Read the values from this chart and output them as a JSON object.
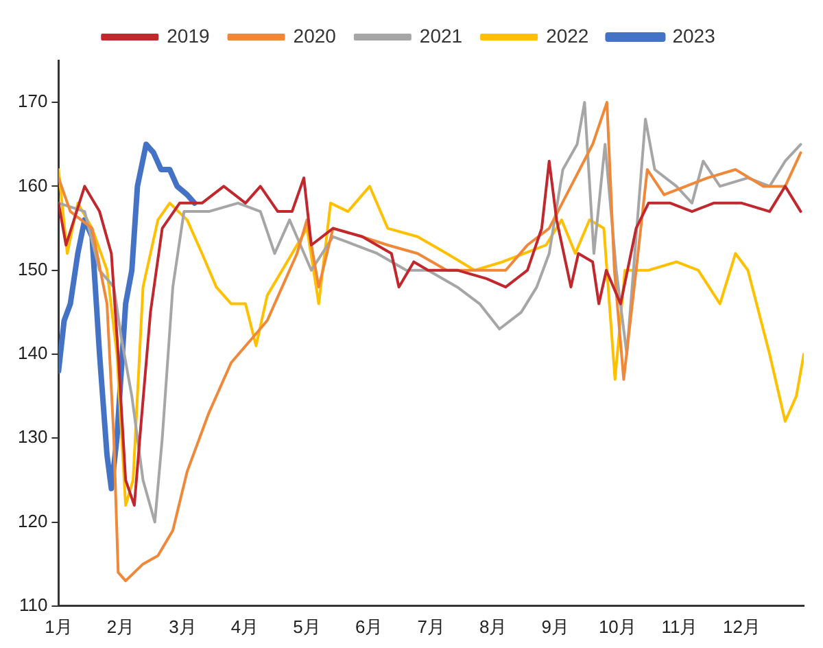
{
  "chart_data": {
    "type": "line",
    "xlim": [
      1,
      13
    ],
    "ylim": [
      110,
      175
    ],
    "yticks": [
      110,
      120,
      130,
      140,
      150,
      160,
      170
    ],
    "xticks": [
      {
        "value": 1,
        "label": "1月"
      },
      {
        "value": 2,
        "label": "2月"
      },
      {
        "value": 3,
        "label": "3月"
      },
      {
        "value": 4,
        "label": "4月"
      },
      {
        "value": 5,
        "label": "5月"
      },
      {
        "value": 6,
        "label": "6月"
      },
      {
        "value": 7,
        "label": "7月"
      },
      {
        "value": 8,
        "label": "8月"
      },
      {
        "value": 9,
        "label": "9月"
      },
      {
        "value": 10,
        "label": "10月"
      },
      {
        "value": 11,
        "label": "11月"
      },
      {
        "value": 12,
        "label": "12月"
      }
    ],
    "grid": false,
    "legend": "top",
    "marker": "none",
    "line_style": "solid",
    "series": [
      {
        "name": "2019",
        "color": "#c0282d",
        "x": [
          1.0,
          1.12,
          1.42,
          1.66,
          1.85,
          1.96,
          2.08,
          2.22,
          2.32,
          2.48,
          2.67,
          2.95,
          3.31,
          3.66,
          4.01,
          4.25,
          4.53,
          4.76,
          4.95,
          5.07,
          5.42,
          5.89,
          6.36,
          6.48,
          6.72,
          6.95,
          7.42,
          7.89,
          8.2,
          8.55,
          8.78,
          8.9,
          9.02,
          9.25,
          9.37,
          9.6,
          9.7,
          9.82,
          10.05,
          10.3,
          10.5,
          10.85,
          11.2,
          11.55,
          12.0,
          12.45,
          12.7,
          12.95
        ],
        "values": [
          158,
          153,
          160,
          157,
          152,
          140,
          125,
          122,
          131,
          145,
          155,
          158,
          158,
          160,
          158,
          160,
          157,
          157,
          161,
          153,
          155,
          154,
          152,
          148,
          151,
          150,
          150,
          149,
          148,
          150,
          155,
          163,
          156,
          148,
          152,
          151,
          146,
          150,
          146,
          155,
          158,
          158,
          157,
          158,
          158,
          157,
          160,
          157
        ]
      },
      {
        "name": "2020",
        "color": "#f0883a",
        "x": [
          1.0,
          1.19,
          1.54,
          1.78,
          1.89,
          1.96,
          2.08,
          2.36,
          2.6,
          2.84,
          3.07,
          3.42,
          3.78,
          4.13,
          4.36,
          4.6,
          4.84,
          5.0,
          5.19,
          5.42,
          5.89,
          6.3,
          6.78,
          7.25,
          7.7,
          8.2,
          8.55,
          8.9,
          9.25,
          9.6,
          9.83,
          9.95,
          10.1,
          10.3,
          10.48,
          10.75,
          11.1,
          11.45,
          11.9,
          12.35,
          12.7,
          12.95
        ],
        "values": [
          161,
          157,
          155,
          146,
          130,
          114,
          113,
          115,
          116,
          119,
          126,
          133,
          139,
          142,
          144,
          148,
          152,
          156,
          148,
          155,
          154,
          153,
          152,
          150,
          150,
          150,
          153,
          155,
          160,
          165,
          170,
          150,
          137,
          150,
          162,
          159,
          160,
          161,
          162,
          160,
          160,
          164
        ]
      },
      {
        "name": "2021",
        "color": "#a6a6a6",
        "x": [
          1.0,
          1.42,
          1.66,
          1.89,
          2.01,
          2.18,
          2.36,
          2.55,
          2.67,
          2.84,
          3.02,
          3.42,
          3.89,
          4.25,
          4.48,
          4.72,
          5.07,
          5.42,
          5.78,
          6.13,
          6.6,
          6.95,
          7.42,
          7.78,
          8.1,
          8.45,
          8.7,
          8.9,
          9.12,
          9.35,
          9.47,
          9.62,
          9.8,
          9.98,
          10.15,
          10.45,
          10.6,
          10.95,
          11.2,
          11.38,
          11.65,
          12.1,
          12.45,
          12.7,
          12.95
        ],
        "values": [
          158,
          157,
          150,
          148,
          142,
          135,
          125,
          120,
          130,
          148,
          157,
          157,
          158,
          157,
          152,
          156,
          150,
          154,
          153,
          152,
          150,
          150,
          148,
          146,
          143,
          145,
          148,
          152,
          162,
          165,
          170,
          152,
          165,
          150,
          140,
          168,
          162,
          160,
          158,
          163,
          160,
          161,
          160,
          163,
          165
        ]
      },
      {
        "name": "2022",
        "color": "#ffc000",
        "x": [
          1.0,
          1.14,
          1.31,
          1.54,
          1.78,
          1.94,
          2.08,
          2.2,
          2.36,
          2.6,
          2.79,
          3.07,
          3.31,
          3.54,
          3.78,
          4.01,
          4.18,
          4.36,
          4.6,
          4.84,
          5.0,
          5.19,
          5.38,
          5.66,
          6.01,
          6.3,
          6.78,
          7.25,
          7.7,
          8.15,
          8.5,
          8.85,
          9.1,
          9.32,
          9.55,
          9.78,
          9.96,
          10.12,
          10.5,
          10.95,
          11.3,
          11.65,
          11.9,
          12.1,
          12.45,
          12.7,
          12.88,
          13.0
        ],
        "values": [
          162,
          152,
          158,
          155,
          150,
          140,
          122,
          125,
          148,
          156,
          158,
          156,
          152,
          148,
          146,
          146,
          141,
          147,
          150,
          153,
          155,
          146,
          158,
          157,
          160,
          155,
          154,
          152,
          150,
          151,
          152,
          153,
          156,
          152,
          156,
          155,
          137,
          150,
          150,
          151,
          150,
          146,
          152,
          150,
          140,
          132,
          135,
          140
        ]
      },
      {
        "name": "2023",
        "color": "#4472c4",
        "x": [
          1.0,
          1.09,
          1.19,
          1.31,
          1.42,
          1.54,
          1.66,
          1.78,
          1.85,
          1.94,
          2.08,
          2.18,
          2.27,
          2.41,
          2.53,
          2.65,
          2.79,
          2.91,
          3.07,
          3.19
        ],
        "values": [
          138,
          144,
          146,
          152,
          156,
          154,
          140,
          128,
          124,
          130,
          146,
          150,
          160,
          165,
          164,
          162,
          162,
          160,
          159,
          158
        ]
      }
    ]
  }
}
